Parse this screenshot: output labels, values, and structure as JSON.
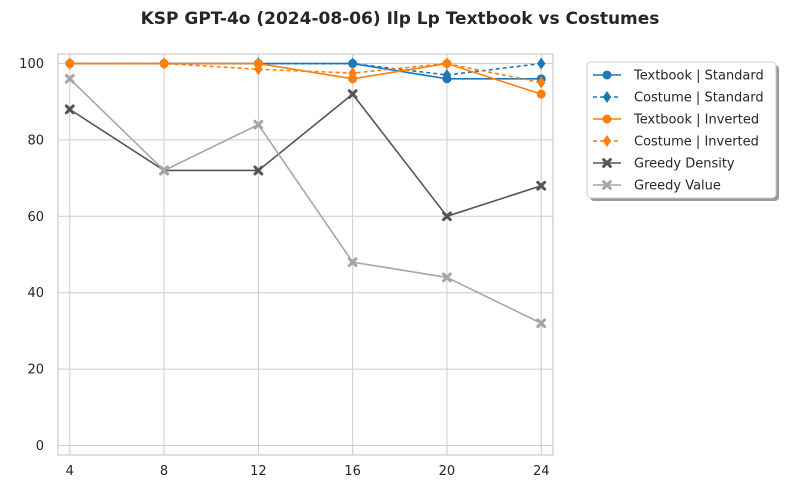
{
  "chart_data": {
    "type": "line",
    "title": "KSP GPT-4o (2024-08-06) Ilp Lp Textbook vs Costumes",
    "xlabel": "",
    "ylabel": "",
    "x": [
      4,
      8,
      12,
      16,
      20,
      24
    ],
    "xticks": [
      "4",
      "8",
      "12",
      "16",
      "20",
      "24"
    ],
    "yticks": [
      "0",
      "20",
      "40",
      "60",
      "80",
      "100"
    ],
    "ylim": [
      -2.5,
      102.5
    ],
    "xlim": [
      3.5,
      24.5
    ],
    "grid": true,
    "legend_position": "outside-top-right",
    "series": [
      {
        "name": "Textbook | Standard",
        "values": [
          100,
          100,
          100,
          100,
          96,
          96
        ],
        "color": "#1f77b4",
        "dash": "solid",
        "marker": "circle"
      },
      {
        "name": "Costume | Standard",
        "values": [
          100,
          100,
          100,
          100,
          97,
          100
        ],
        "color": "#1f77b4",
        "dash": "dashed",
        "marker": "diamond"
      },
      {
        "name": "Textbook | Inverted",
        "values": [
          100,
          100,
          100,
          96,
          100,
          92
        ],
        "color": "#ff7f0e",
        "dash": "solid",
        "marker": "circle"
      },
      {
        "name": "Costume | Inverted",
        "values": [
          100,
          100,
          98.5,
          97.5,
          100,
          95
        ],
        "color": "#ff7f0e",
        "dash": "dashed",
        "marker": "diamond"
      },
      {
        "name": "Greedy Density",
        "values": [
          88,
          72,
          72,
          92,
          60,
          68
        ],
        "color": "#555555",
        "dash": "solid",
        "marker": "x"
      },
      {
        "name": "Greedy Value",
        "values": [
          96,
          72,
          84,
          48,
          44,
          32
        ],
        "color": "#a6a6a6",
        "dash": "solid",
        "marker": "x"
      }
    ]
  }
}
